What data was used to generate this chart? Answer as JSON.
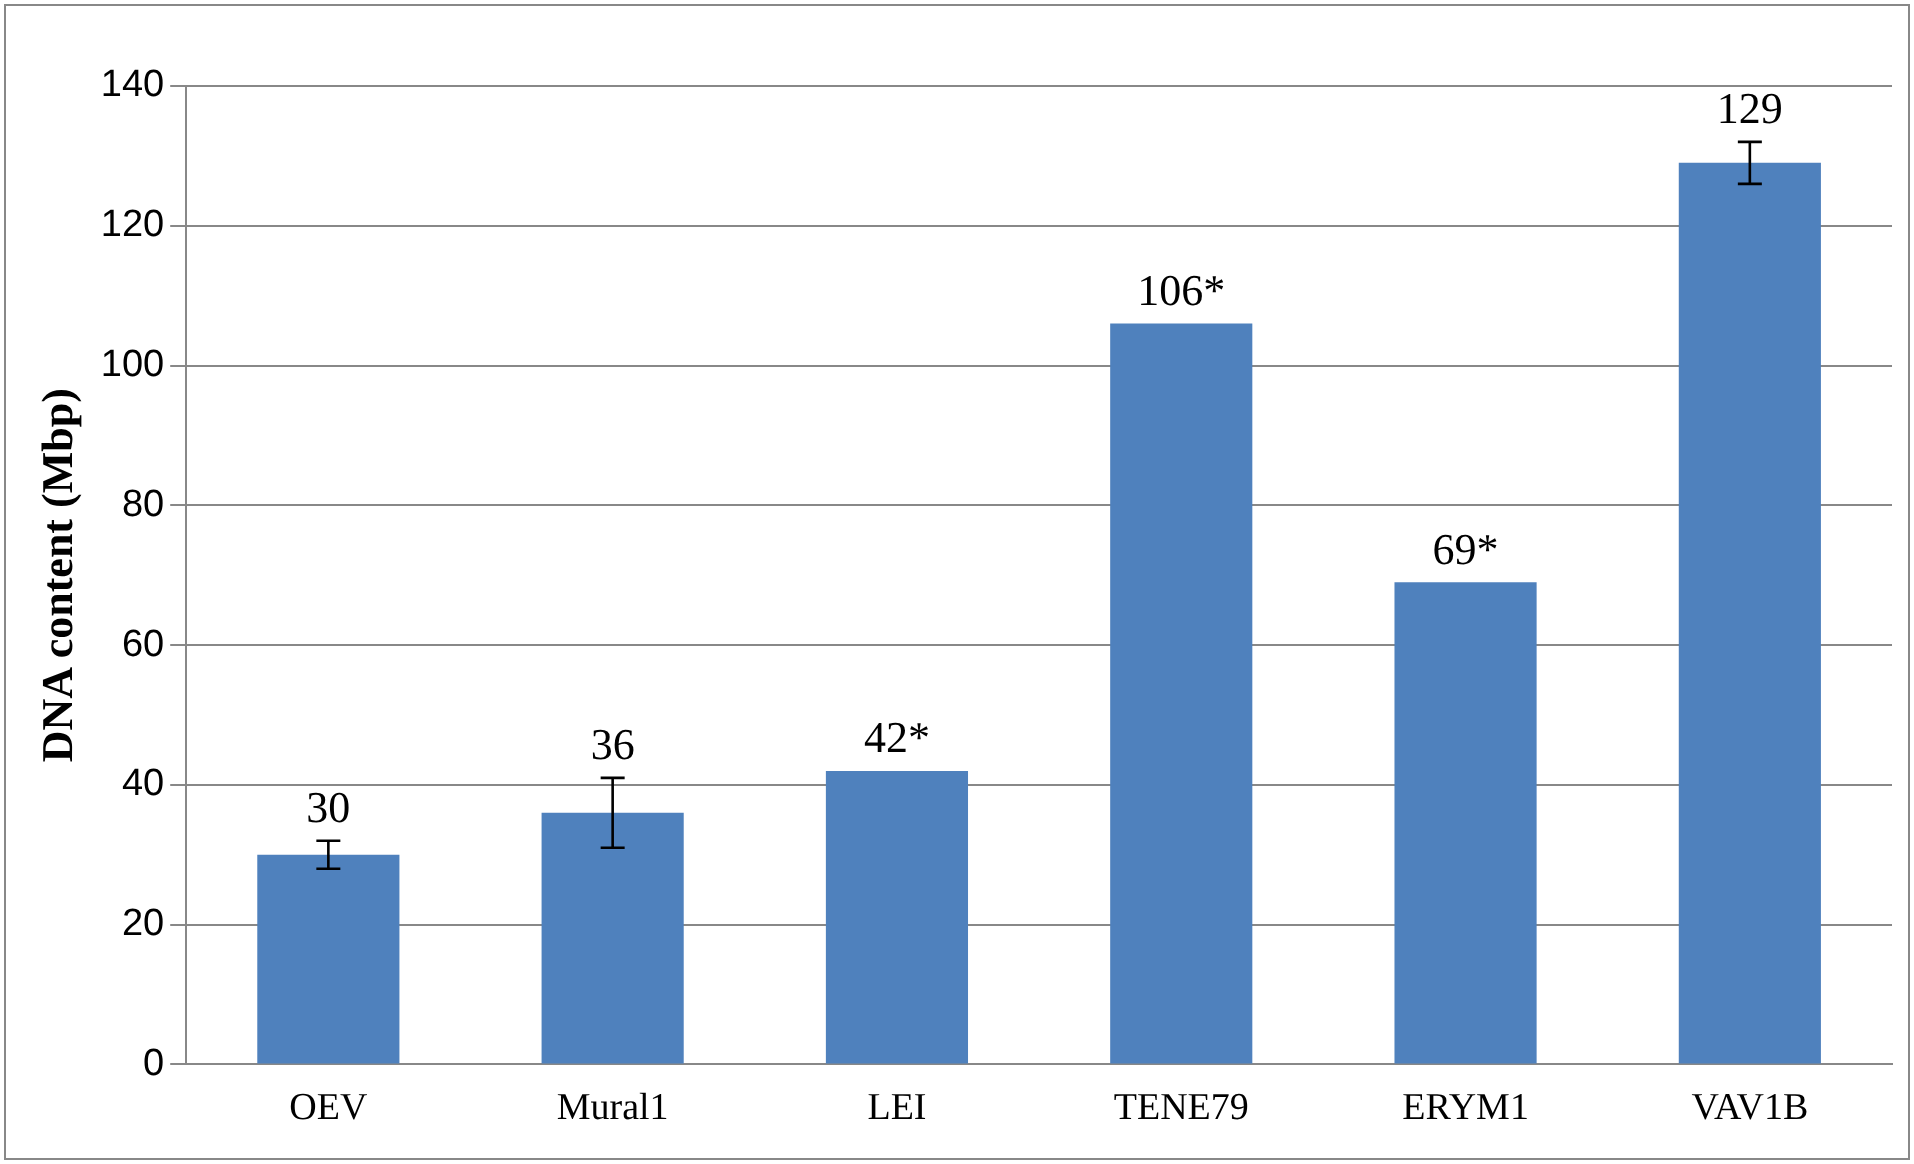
{
  "chart_data": {
    "type": "bar",
    "ylabel": "DNA content (Mbp)",
    "categories": [
      "OEV",
      "Mural1",
      "LEI",
      "TENE79",
      "ERYM1",
      "VAV1B"
    ],
    "values": [
      30,
      36,
      42,
      106,
      69,
      129
    ],
    "value_labels": [
      "30",
      "36",
      "42*",
      "106*",
      "69*",
      "129"
    ],
    "errors": [
      2,
      5,
      null,
      null,
      null,
      3
    ],
    "color": "#4f81bd",
    "ylim": [
      0,
      140
    ],
    "yticks": [
      0,
      20,
      40,
      60,
      80,
      100,
      120,
      140
    ],
    "grid": "y",
    "legend": false
  }
}
